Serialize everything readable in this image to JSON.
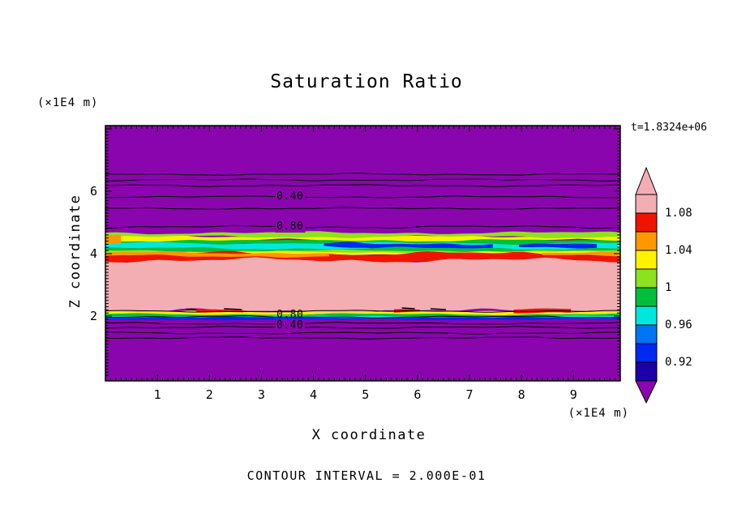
{
  "chart_data": {
    "type": "contour",
    "title": "Saturation Ratio",
    "time_label": "t=1.8324e+06",
    "xlabel": "X coordinate",
    "ylabel": "Z coordinate",
    "x_axis_units": "(×1E4 m)",
    "y_axis_units": "(×1E4 m)",
    "footer": "CONTOUR INTERVAL = 2.000E-01",
    "x_ticks": [
      1,
      2,
      3,
      4,
      5,
      6,
      7,
      8,
      9
    ],
    "y_ticks": [
      2,
      4,
      6
    ],
    "xlim": [
      0,
      9.9
    ],
    "ylim": [
      -0.078,
      8.104
    ],
    "colors": {
      "purple": "#8A05AD",
      "pink": "#F3AEB4",
      "red": "#EE1400",
      "orange": "#FF9800",
      "yellow": "#FFF200",
      "lightgreen": "#8CE21E",
      "green": "#00BE3C",
      "cyan": "#00E8DE",
      "lightblue": "#0074F2",
      "blue": "#0028F0",
      "darkblue": "#1C00AA"
    },
    "bands": [
      {
        "color": "cyan",
        "z": [
          4.14,
          4.38
        ],
        "x": [
          0,
          9.9
        ],
        "amp": 0.04
      },
      {
        "color": "blue",
        "z": [
          4.19,
          4.33
        ],
        "x": [
          4.2,
          7.45
        ],
        "amp": 0.035
      },
      {
        "color": "blue",
        "z": [
          4.2,
          4.31
        ],
        "x": [
          7.95,
          9.45
        ],
        "amp": 0.02
      },
      {
        "color": "green",
        "z": [
          4.34,
          4.47
        ],
        "x": [
          0,
          9.9
        ],
        "amp": 0.03
      },
      {
        "color": "yellow",
        "z": [
          4.43,
          4.57
        ],
        "x": [
          0,
          9.9
        ],
        "amp": 0.03
      },
      {
        "color": "lightgreen",
        "z": [
          4.54,
          4.67
        ],
        "x": [
          0,
          9.9
        ],
        "amp": 0.03
      },
      {
        "color": "orange",
        "z": [
          4.3,
          4.62
        ],
        "x": [
          0,
          0.3
        ],
        "amp": 0.02
      },
      {
        "color": "green",
        "z": [
          4.03,
          4.17
        ],
        "x": [
          0,
          9.9
        ],
        "amp": 0.03
      },
      {
        "color": "lightgreen",
        "z": [
          3.99,
          4.09
        ],
        "x": [
          0,
          9.9
        ],
        "amp": 0.025
      },
      {
        "color": "yellow",
        "z": [
          3.96,
          4.05
        ],
        "x": [
          0,
          9.9
        ],
        "amp": 0.025
      },
      {
        "color": "red",
        "z": [
          3.72,
          4.0
        ],
        "x": [
          0,
          9.9
        ],
        "amp": 0.05
      },
      {
        "color": "orange",
        "z": [
          3.92,
          4.03
        ],
        "x": [
          0,
          4.3
        ],
        "amp": 0.03
      },
      {
        "color": "orange",
        "z": [
          3.93,
          4.02
        ],
        "x": [
          8.4,
          9.9
        ],
        "amp": 0.02
      },
      {
        "color": "pink",
        "z": [
          2.16,
          3.79
        ],
        "x": [
          0,
          9.9
        ],
        "amp": 0.05
      },
      {
        "color": "yellow",
        "z": [
          2.04,
          2.14
        ],
        "x": [
          0,
          9.9
        ],
        "amp": 0.02
      },
      {
        "color": "green",
        "z": [
          1.98,
          2.06
        ],
        "x": [
          0,
          9.9
        ],
        "amp": 0.02
      },
      {
        "color": "cyan",
        "z": [
          1.94,
          2.0
        ],
        "x": [
          0,
          9.9
        ],
        "amp": 0.015
      },
      {
        "color": "blue",
        "z": [
          1.89,
          1.955
        ],
        "x": [
          0,
          9.9
        ],
        "amp": 0.015
      },
      {
        "color": "red",
        "z": [
          2.1,
          2.21
        ],
        "x": [
          1.75,
          2.65
        ],
        "amp": 0.02
      },
      {
        "color": "red",
        "z": [
          2.11,
          2.2
        ],
        "x": [
          5.55,
          6.05
        ],
        "amp": 0.02
      },
      {
        "color": "red",
        "z": [
          2.09,
          2.21
        ],
        "x": [
          7.85,
          8.95
        ],
        "amp": 0.02
      }
    ],
    "contour_lines": [
      {
        "z": 6.545
      },
      {
        "z": 6.364
      },
      {
        "z": 6.182
      },
      {
        "z": 5.818
      },
      {
        "z": 5.45
      },
      {
        "z": 4.857,
        "amp": 0.025
      },
      {
        "z": 2.156
      },
      {
        "z": 1.974
      },
      {
        "z": 1.766
      },
      {
        "z": 1.636
      },
      {
        "z": 1.455
      },
      {
        "z": 1.299
      }
    ],
    "contour_dashes": [
      {
        "z": 2.235,
        "x": [
          2.28,
          2.62
        ]
      },
      {
        "z": 2.26,
        "x": [
          5.7,
          5.95
        ]
      },
      {
        "z": 2.235,
        "x": [
          6.25,
          6.55
        ]
      },
      {
        "z": 2.22,
        "x": [
          1.55,
          1.75
        ]
      }
    ],
    "contour_labels": [
      {
        "text": "0.40",
        "x": 3.55,
        "z": 5.818,
        "bg": true
      },
      {
        "text": "0.80",
        "x": 3.55,
        "z": 4.857,
        "bg": true
      },
      {
        "text": "0.80",
        "x": 3.55,
        "z": 2.026,
        "bg": false
      },
      {
        "text": "0.40",
        "x": 3.55,
        "z": 1.688,
        "bg": true
      }
    ],
    "colorbar": {
      "segments_top_to_bottom": [
        "#F3AEB4",
        "#EE1400",
        "#FF9800",
        "#FFF200",
        "#8CE21E",
        "#00BE3C",
        "#00E8DE",
        "#0074F2",
        "#0028F0",
        "#1C00AA"
      ],
      "top_arrow_color": "#F3AEB4",
      "bottom_arrow_color": "#8A05AD",
      "labels": [
        {
          "text": "1.08",
          "boundary": 1
        },
        {
          "text": "1.04",
          "boundary": 3
        },
        {
          "text": "1",
          "boundary": 5
        },
        {
          "text": "0.96",
          "boundary": 7
        },
        {
          "text": "0.92",
          "boundary": 9
        }
      ]
    }
  }
}
